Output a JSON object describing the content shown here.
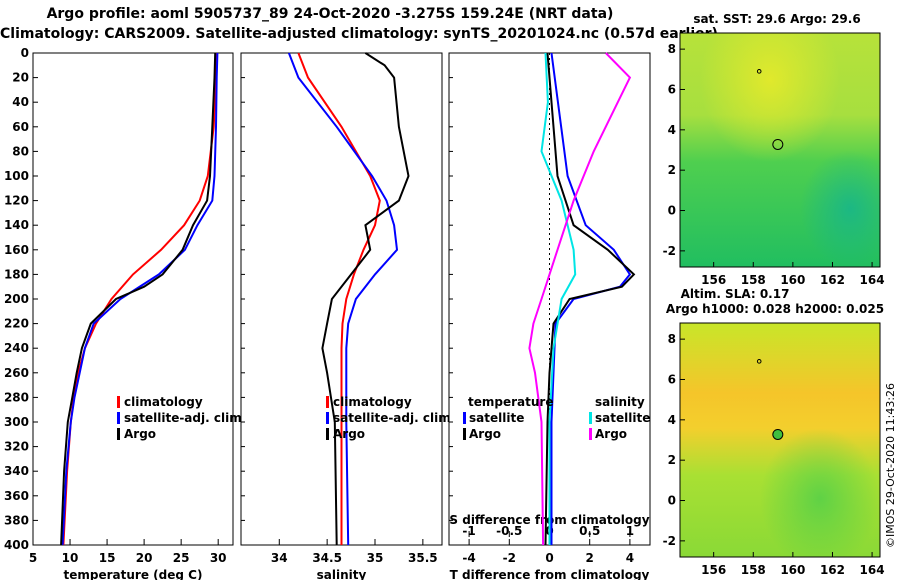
{
  "header": {
    "title_line1": "Argo profile: aoml 5905737_89 24-Oct-2020 -3.275S 159.24E (NRT data)",
    "title_line2": "Climatology: CARS2009. Satellite-adjusted climatology: synTS_20201024.nc (0.57d earlier)"
  },
  "colors": {
    "climatology": "#ff0000",
    "satellite": "#0000ff",
    "argo": "#000000",
    "salinity_diff_satellite": "#00e5e5",
    "salinity_diff_argo": "#ff00ff"
  },
  "chart_data": [
    {
      "type": "line",
      "name": "temperature-panel",
      "xlabel": "temperature (deg C)",
      "ylabel": "",
      "xlim": [
        5,
        32
      ],
      "ylim": [
        400,
        0
      ],
      "xticks": [
        "5",
        "10",
        "15",
        "20",
        "25",
        "30"
      ],
      "yticks": [
        "0",
        "20",
        "40",
        "60",
        "80",
        "100",
        "120",
        "140",
        "160",
        "180",
        "200",
        "220",
        "240",
        "260",
        "280",
        "300",
        "320",
        "340",
        "360",
        "380",
        "400"
      ],
      "legend": [
        "climatology",
        "satellite-adj. clim.",
        "Argo"
      ],
      "series": [
        {
          "name": "climatology",
          "depth": [
            0,
            20,
            60,
            100,
            120,
            140,
            160,
            180,
            200,
            220,
            240,
            260,
            280,
            300,
            340,
            400
          ],
          "values": [
            29.8,
            29.7,
            29.4,
            28.6,
            27.5,
            25.4,
            22.3,
            18.5,
            15.6,
            13.5,
            12.0,
            11.1,
            10.5,
            10.1,
            9.6,
            9.1
          ]
        },
        {
          "name": "satellite-adj. clim.",
          "depth": [
            0,
            20,
            60,
            100,
            120,
            140,
            160,
            180,
            200,
            220,
            240,
            260,
            280,
            300,
            340,
            400
          ],
          "values": [
            29.9,
            29.8,
            29.7,
            29.5,
            29.2,
            27.2,
            25.5,
            22.0,
            16.8,
            13.2,
            12.0,
            11.3,
            10.6,
            10.1,
            9.5,
            9.0
          ]
        },
        {
          "name": "Argo",
          "depth": [
            0,
            20,
            60,
            100,
            120,
            140,
            160,
            180,
            190,
            200,
            220,
            240,
            260,
            280,
            300,
            340,
            400
          ],
          "values": [
            29.6,
            29.5,
            29.2,
            28.9,
            28.5,
            26.6,
            25.2,
            22.5,
            20.0,
            16.2,
            12.8,
            11.6,
            10.9,
            10.3,
            9.7,
            9.2,
            8.8
          ]
        }
      ]
    },
    {
      "type": "line",
      "name": "salinity-panel",
      "xlabel": "salinity",
      "xlim": [
        33.6,
        35.7
      ],
      "ylim": [
        400,
        0
      ],
      "xticks": [
        "34",
        "34.5",
        "35",
        "35.5"
      ],
      "legend": [
        "climatology",
        "satellite-adj. clim.",
        "Argo"
      ],
      "series": [
        {
          "name": "climatology",
          "depth": [
            0,
            20,
            60,
            100,
            120,
            140,
            160,
            180,
            200,
            220,
            240,
            260,
            300,
            400
          ],
          "values": [
            34.2,
            34.3,
            34.65,
            34.95,
            35.05,
            35.0,
            34.88,
            34.78,
            34.7,
            34.66,
            34.65,
            34.65,
            34.65,
            34.65
          ]
        },
        {
          "name": "satellite-adj. clim.",
          "depth": [
            0,
            20,
            60,
            100,
            120,
            140,
            160,
            180,
            200,
            220,
            240,
            260,
            300,
            400
          ],
          "values": [
            34.1,
            34.2,
            34.6,
            34.97,
            35.12,
            35.2,
            35.23,
            35.0,
            34.8,
            34.72,
            34.7,
            34.7,
            34.7,
            34.72
          ]
        },
        {
          "name": "Argo",
          "depth": [
            0,
            10,
            20,
            60,
            100,
            120,
            140,
            160,
            180,
            200,
            220,
            240,
            260,
            300,
            400
          ],
          "values": [
            34.9,
            35.1,
            35.2,
            35.25,
            35.35,
            35.25,
            34.9,
            34.95,
            34.75,
            34.55,
            34.5,
            34.45,
            34.5,
            34.58,
            34.6
          ]
        }
      ]
    },
    {
      "type": "line",
      "name": "difference-panel",
      "xlabel": "T difference from climatology",
      "xlabel_top": "S difference from climatology",
      "xlim": [
        -5,
        5
      ],
      "ylim": [
        400,
        0
      ],
      "xticks": [
        "-4",
        "-2",
        "0",
        "2",
        "4"
      ],
      "xticks_top": [
        "-1",
        "-0.5",
        "0",
        "0.5",
        "1"
      ],
      "legend_temperature": [
        "temperature",
        "satellite",
        "Argo"
      ],
      "legend_salinity": [
        "salinity",
        "satellite",
        "Argo"
      ],
      "series": [
        {
          "name": "temperature satellite",
          "depth": [
            0,
            100,
            140,
            160,
            180,
            190,
            200,
            220,
            260,
            300,
            400
          ],
          "values": [
            0.1,
            0.9,
            1.8,
            3.2,
            4.0,
            3.5,
            1.2,
            0.3,
            0.2,
            0.1,
            0.1
          ]
        },
        {
          "name": "temperature Argo",
          "depth": [
            0,
            100,
            140,
            160,
            180,
            190,
            200,
            220,
            260,
            300,
            400
          ],
          "values": [
            -0.1,
            0.4,
            1.2,
            2.9,
            4.2,
            3.6,
            1.0,
            0.2,
            0.0,
            -0.1,
            -0.2
          ]
        },
        {
          "name": "salinity satellite",
          "depth": [
            0,
            40,
            80,
            120,
            160,
            180,
            200,
            240,
            300,
            400
          ],
          "values": [
            -0.05,
            -0.02,
            -0.1,
            0.15,
            0.3,
            0.32,
            0.15,
            0.05,
            0.0,
            0.0
          ]
        },
        {
          "name": "salinity Argo",
          "depth": [
            0,
            20,
            40,
            80,
            120,
            160,
            180,
            200,
            220,
            240,
            260,
            300,
            400
          ],
          "values": [
            0.7,
            1.0,
            0.85,
            0.55,
            0.3,
            0.1,
            0.0,
            -0.1,
            -0.2,
            -0.25,
            -0.18,
            -0.1,
            -0.08
          ]
        }
      ]
    },
    {
      "type": "heatmap",
      "name": "sst-map",
      "title": "sat. SST: 29.6 Argo: 29.6",
      "xticks": [
        "156",
        "158",
        "160",
        "162",
        "164"
      ],
      "yticks": [
        "8",
        "6",
        "4",
        "2",
        "0",
        "-2"
      ],
      "xlim": [
        154.3,
        164.4
      ],
      "ylim": [
        -2.8,
        8.8
      ]
    },
    {
      "type": "heatmap",
      "name": "sla-map",
      "title": "Altim. SLA: 0.17",
      "subtitle": "Argo h1000: 0.028 h2000: 0.025",
      "xticks": [
        "156",
        "158",
        "160",
        "162",
        "164"
      ],
      "yticks": [
        "8",
        "6",
        "4",
        "2",
        "0",
        "-2"
      ],
      "xlim": [
        154.3,
        164.4
      ],
      "ylim": [
        -2.8,
        8.8
      ]
    }
  ],
  "footer": {
    "credit": "©IMOS 29-Oct-2020 11:43:26"
  }
}
